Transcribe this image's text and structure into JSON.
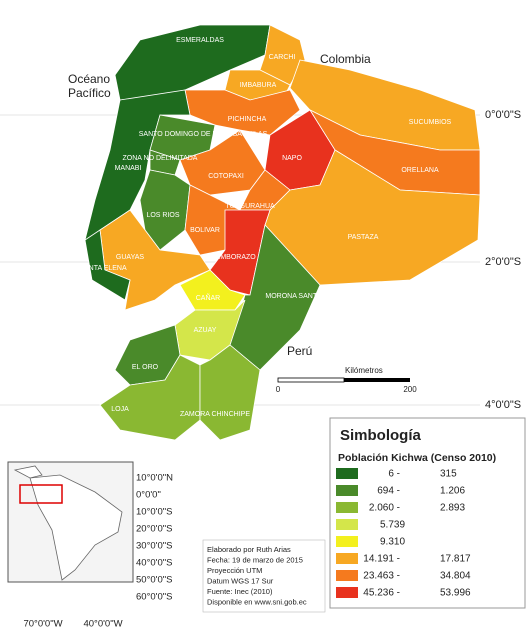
{
  "map": {
    "provinces": [
      "ESMERALDAS",
      "CARCHI",
      "IMBABURA",
      "PICHINCHA",
      "SUCUMBIOS",
      "SANTO DOMINGO DE LOS TSACHILAS",
      "ZONA NO DELIMITADA",
      "MANABI",
      "NAPO",
      "ORELLANA",
      "COTOPAXI",
      "LOS RIOS",
      "TUNGURAHUA",
      "BOLIVAR",
      "PASTAZA",
      "GUAYAS",
      "SANTA ELENA",
      "CHIMBORAZO",
      "CAÑAR",
      "MORONA SANTIAGO",
      "AZUAY",
      "EL ORO",
      "LOJA",
      "ZAMORA CHINCHIPE"
    ],
    "regions": {
      "colombia": "Colombia",
      "peru": "Perú",
      "ocean": [
        "Océano",
        "Pacífico"
      ]
    },
    "latitude_labels": [
      "0°0'0\"S",
      "2°0'0\"S",
      "4°0'0\"S"
    ],
    "scale": {
      "title": "Kilómetros",
      "start": "0",
      "end": "200"
    }
  },
  "legend": {
    "title": "Simbología",
    "subtitle": "Población Kichwa (Censo 2010)",
    "classes": [
      [
        "6 -",
        "315"
      ],
      [
        "694 -",
        "1.206"
      ],
      [
        "2.060 -",
        "2.893"
      ],
      [
        "5.739"
      ],
      [
        "9.310"
      ],
      [
        "14.191 -",
        "17.817"
      ],
      [
        "23.463 -",
        "34.804"
      ],
      [
        "45.236 -",
        "53.996"
      ]
    ]
  },
  "inset": {
    "latitude_labels": [
      "10°0'0\"N",
      "0°0'0\"",
      "10°0'0\"S",
      "20°0'0\"S",
      "30°0'0\"S",
      "40°0'0\"S",
      "50°0'0\"S",
      "60°0'0\"S"
    ],
    "longitude_labels": [
      "70°0'0\"W",
      "40°0'0\"W"
    ]
  },
  "credits": [
    "Elaborado por Ruth Arias",
    "Fecha: 19 de marzo de 2015",
    "Proyección UTM",
    "Datum WGS 17 Sur",
    "Fuente: Inec (2010)",
    "Disponible en www.sni.gob.ec"
  ]
}
